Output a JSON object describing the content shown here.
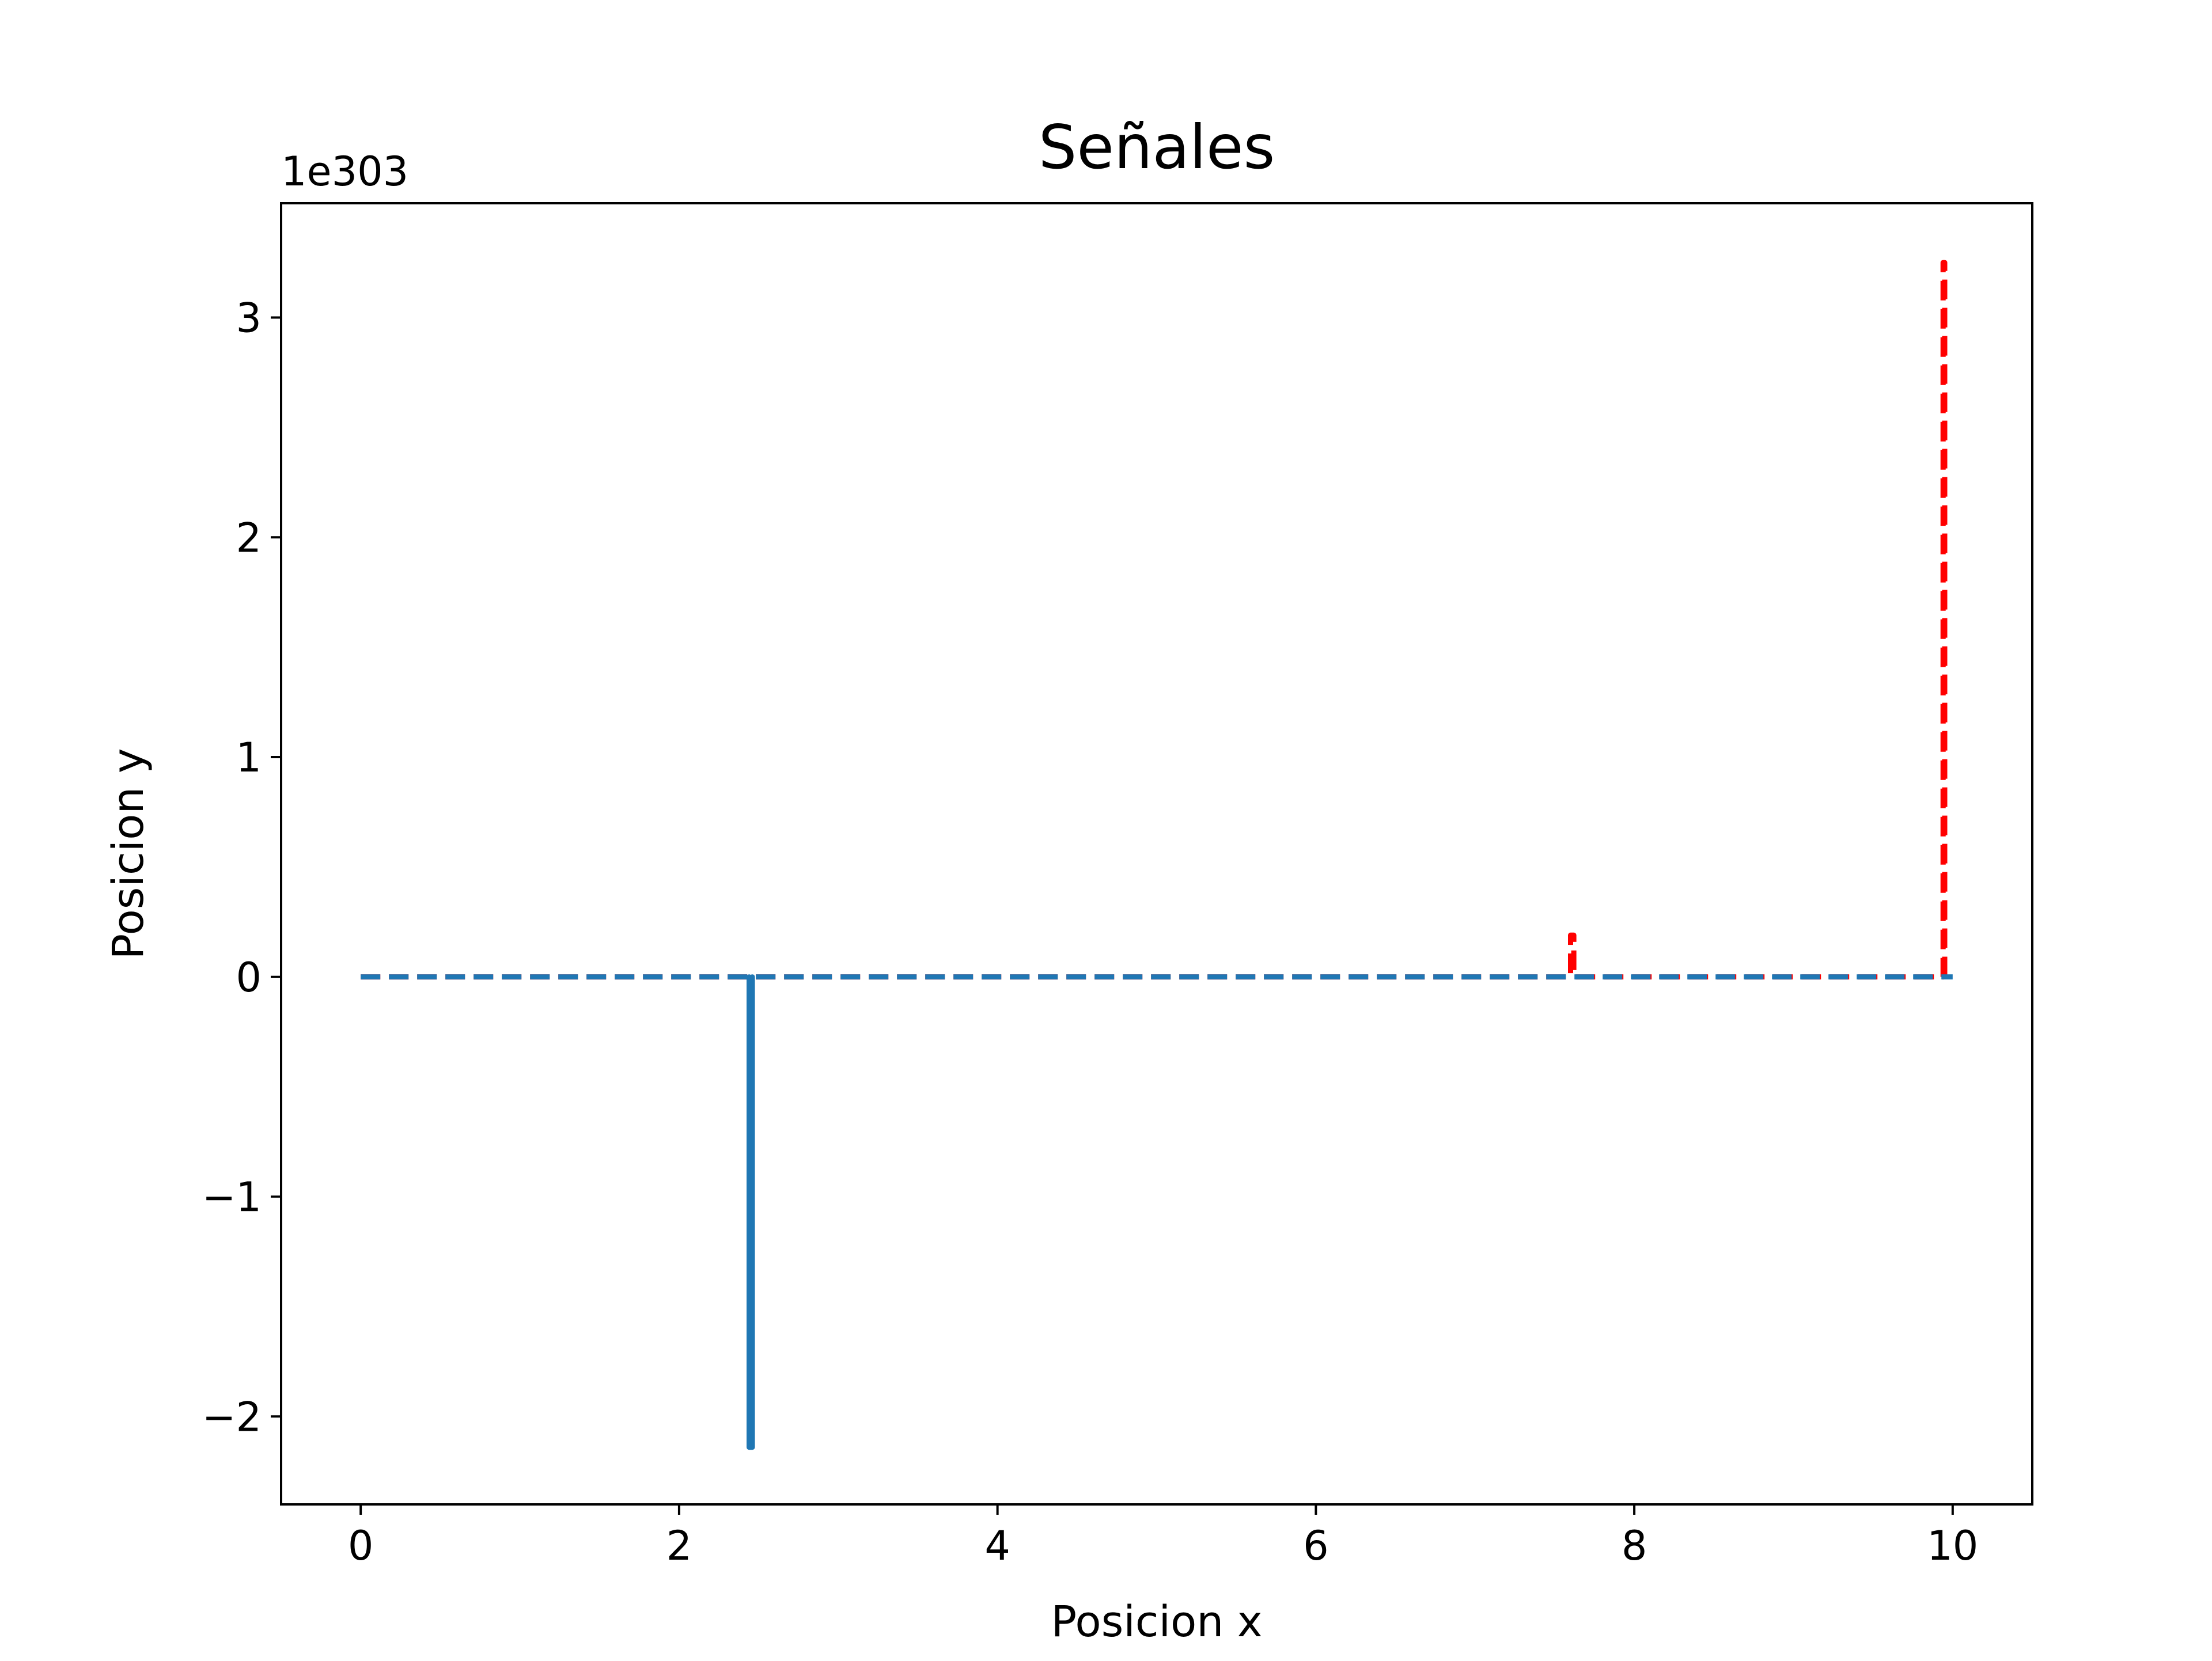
{
  "chart_data": {
    "type": "line",
    "title": "Señales",
    "xlabel": "Posicion x",
    "ylabel": "Posicion y",
    "y_offset_text": "1e303",
    "xlim": [
      -0.5,
      10.5
    ],
    "ylim": [
      -2.4,
      3.52
    ],
    "y_scale_factor": 1e+303,
    "xticks": [
      0,
      2,
      4,
      6,
      8,
      10
    ],
    "xtick_labels": [
      "0",
      "2",
      "4",
      "6",
      "8",
      "10"
    ],
    "yticks": [
      -2,
      -1,
      0,
      1,
      2,
      3
    ],
    "ytick_labels": [
      "−2",
      "−1",
      "0",
      "1",
      "2",
      "3"
    ],
    "grid": false,
    "legend": "none",
    "series": [
      {
        "color": "#ff0000",
        "style": "dashed",
        "x": [
          0.0,
          7.6,
          7.6,
          7.62,
          7.62,
          9.94,
          9.94,
          9.95,
          9.95,
          10.0
        ],
        "y": [
          0.0,
          0.0,
          0.19,
          0.19,
          0.0,
          0.0,
          3.25,
          3.25,
          0.0,
          0.0
        ]
      },
      {
        "color": "#1f77b4",
        "style": "solid",
        "x": [
          2.44,
          2.44,
          2.46,
          2.46
        ],
        "y": [
          0.0,
          -2.14,
          -2.14,
          0.0
        ]
      },
      {
        "color": "#1f77b4",
        "style": "dashed",
        "x": [
          0.0,
          10.0
        ],
        "y": [
          0.0,
          0.0
        ]
      }
    ]
  }
}
